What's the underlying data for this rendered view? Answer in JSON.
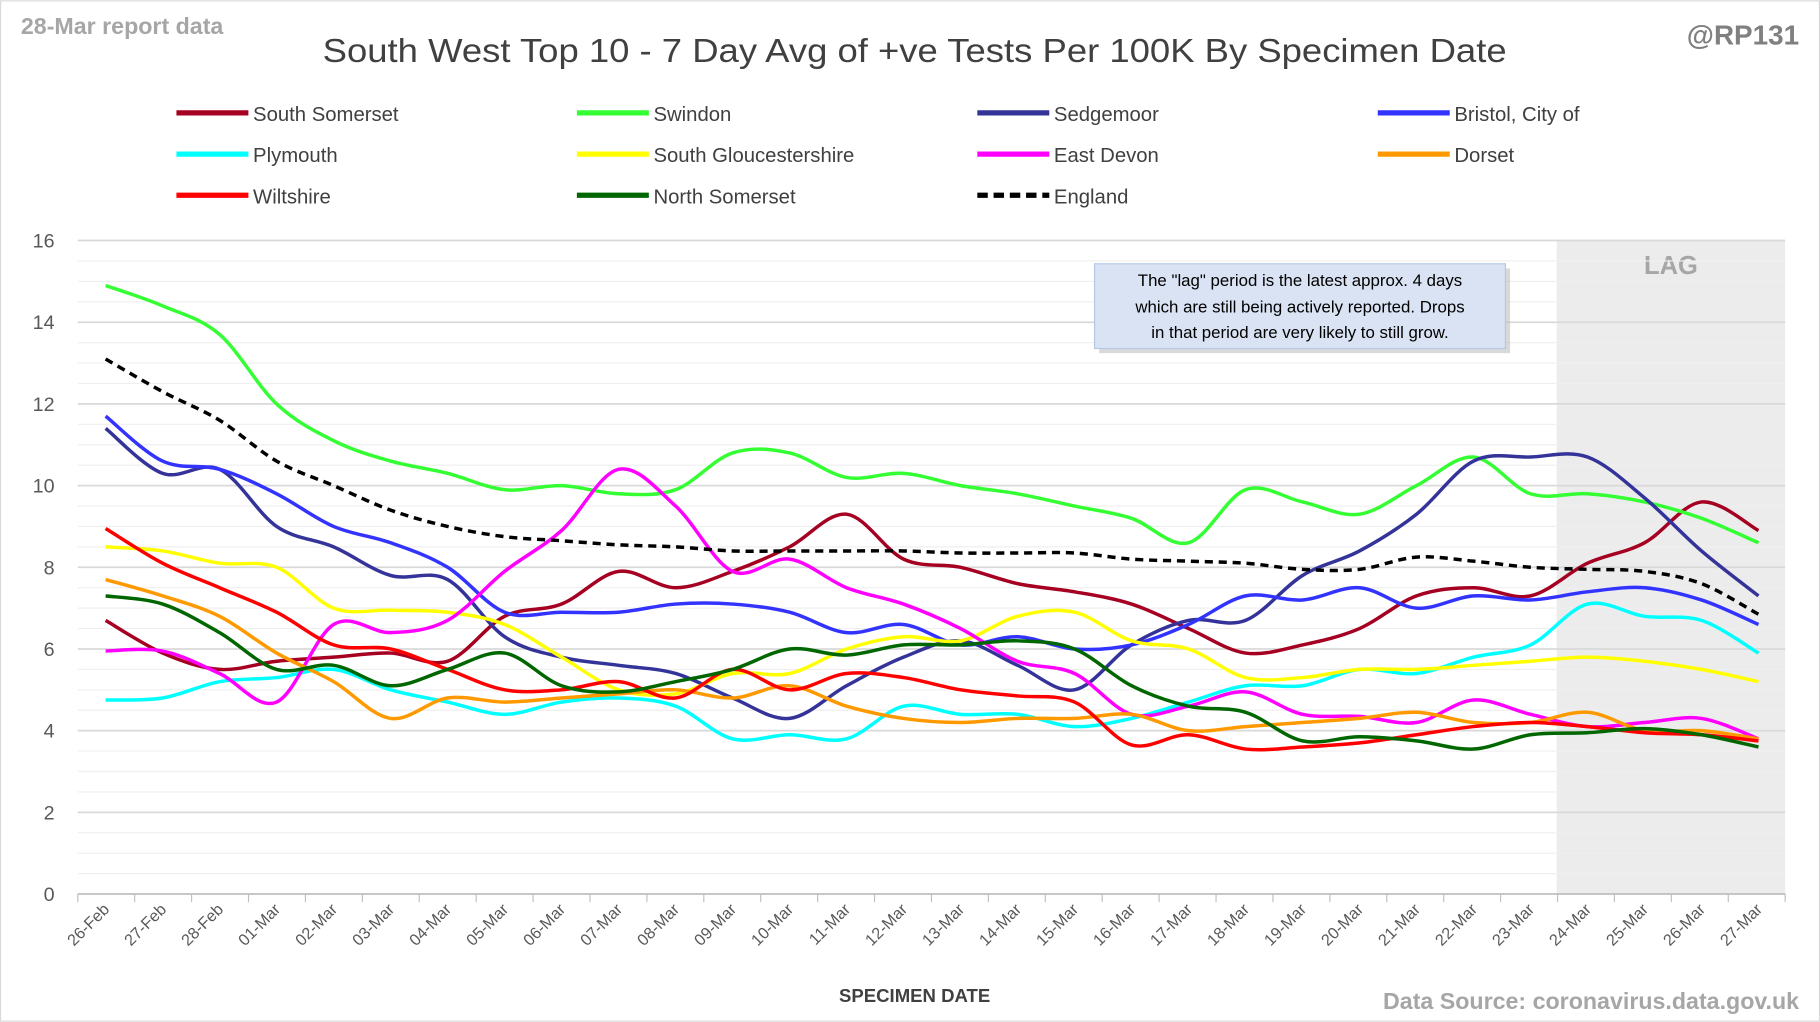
{
  "chart_data": {
    "type": "line",
    "title": "South West Top 10 - 7 Day Avg of +ve Tests Per 100K By Specimen Date",
    "report_label": "28-Mar report data",
    "handle": "@RP131",
    "source": "Data Source: coronavirus.data.gov.uk",
    "xlabel": "SPECIMEN DATE",
    "ylabel": "",
    "ylim": [
      0,
      16
    ],
    "yticks": [
      "0",
      "2",
      "4",
      "6",
      "8",
      "10",
      "12",
      "14",
      "16"
    ],
    "grid": true,
    "legend_placement": "top",
    "lag_label": "LAG",
    "lag_start_index": 25,
    "annotation": [
      "The \"lag\" period is the latest approx. 4 days",
      "which are still being actively reported.  Drops",
      "in that period are very likely to still grow."
    ],
    "categories": [
      "26-Feb",
      "27-Feb",
      "28-Feb",
      "01-Mar",
      "02-Mar",
      "03-Mar",
      "04-Mar",
      "05-Mar",
      "06-Mar",
      "07-Mar",
      "08-Mar",
      "09-Mar",
      "10-Mar",
      "11-Mar",
      "12-Mar",
      "13-Mar",
      "14-Mar",
      "15-Mar",
      "16-Mar",
      "17-Mar",
      "18-Mar",
      "19-Mar",
      "20-Mar",
      "21-Mar",
      "22-Mar",
      "23-Mar",
      "24-Mar",
      "25-Mar",
      "26-Mar",
      "27-Mar"
    ],
    "series": [
      {
        "name": "South Somerset",
        "color": "#a50021",
        "dashed": false,
        "values": [
          6.7,
          5.9,
          5.5,
          5.7,
          5.8,
          5.9,
          5.7,
          6.8,
          7.1,
          7.9,
          7.5,
          7.9,
          8.5,
          9.3,
          8.2,
          8.0,
          7.6,
          7.4,
          7.1,
          6.5,
          5.9,
          6.1,
          6.5,
          7.3,
          7.5,
          7.3,
          8.1,
          8.6,
          9.6,
          8.9
        ]
      },
      {
        "name": "Swindon",
        "color": "#33ff33",
        "dashed": false,
        "values": [
          14.9,
          14.4,
          13.7,
          12.0,
          11.1,
          10.6,
          10.3,
          9.9,
          10.0,
          9.8,
          9.9,
          10.8,
          10.8,
          10.2,
          10.3,
          10.0,
          9.8,
          9.5,
          9.2,
          8.6,
          9.9,
          9.6,
          9.3,
          10.0,
          10.7,
          9.8,
          9.8,
          9.6,
          9.2,
          8.6
        ]
      },
      {
        "name": "Sedgemoor",
        "color": "#333399",
        "dashed": false,
        "values": [
          11.4,
          10.3,
          10.4,
          9.0,
          8.5,
          7.8,
          7.7,
          6.3,
          5.8,
          5.6,
          5.4,
          4.8,
          4.3,
          5.1,
          5.8,
          6.2,
          5.6,
          5.0,
          6.1,
          6.7,
          6.7,
          7.8,
          8.4,
          9.3,
          10.6,
          10.7,
          10.7,
          9.7,
          8.4,
          7.3
        ]
      },
      {
        "name": "Bristol, City of",
        "color": "#3333ff",
        "dashed": false,
        "values": [
          11.7,
          10.6,
          10.4,
          9.8,
          9.0,
          8.6,
          8.0,
          6.9,
          6.9,
          6.9,
          7.1,
          7.1,
          6.9,
          6.4,
          6.6,
          6.1,
          6.3,
          6.0,
          6.1,
          6.6,
          7.3,
          7.2,
          7.5,
          7.0,
          7.3,
          7.2,
          7.4,
          7.5,
          7.2,
          6.6
        ]
      },
      {
        "name": "Plymouth",
        "color": "#00ffff",
        "dashed": false,
        "values": [
          4.75,
          4.8,
          5.2,
          5.3,
          5.5,
          5.0,
          4.7,
          4.4,
          4.7,
          4.8,
          4.6,
          3.8,
          3.9,
          3.8,
          4.6,
          4.4,
          4.4,
          4.1,
          4.3,
          4.7,
          5.1,
          5.1,
          5.5,
          5.4,
          5.8,
          6.1,
          7.1,
          6.8,
          6.7,
          5.9
        ]
      },
      {
        "name": "South Gloucestershire",
        "color": "#ffff00",
        "dashed": false,
        "values": [
          8.5,
          8.4,
          8.1,
          8.0,
          7.0,
          6.95,
          6.9,
          6.6,
          5.8,
          5.0,
          4.9,
          5.4,
          5.4,
          6.0,
          6.3,
          6.2,
          6.8,
          6.9,
          6.2,
          6.0,
          5.3,
          5.3,
          5.5,
          5.5,
          5.6,
          5.7,
          5.8,
          5.7,
          5.5,
          5.2
        ]
      },
      {
        "name": "East Devon",
        "color": "#ff00ff",
        "dashed": false,
        "values": [
          5.95,
          5.95,
          5.4,
          4.7,
          6.6,
          6.4,
          6.7,
          7.9,
          8.9,
          10.4,
          9.5,
          7.9,
          8.2,
          7.5,
          7.1,
          6.5,
          5.7,
          5.4,
          4.4,
          4.6,
          4.95,
          4.4,
          4.35,
          4.2,
          4.75,
          4.4,
          4.1,
          4.2,
          4.3,
          3.8
        ]
      },
      {
        "name": "Dorset",
        "color": "#ff9900",
        "dashed": false,
        "values": [
          7.7,
          7.3,
          6.8,
          5.9,
          5.2,
          4.3,
          4.8,
          4.7,
          4.8,
          4.9,
          5.0,
          4.8,
          5.1,
          4.6,
          4.3,
          4.2,
          4.3,
          4.3,
          4.4,
          4.0,
          4.1,
          4.2,
          4.3,
          4.45,
          4.2,
          4.2,
          4.45,
          4.0,
          4.0,
          3.8
        ]
      },
      {
        "name": "Wiltshire",
        "color": "#ff0000",
        "dashed": false,
        "values": [
          8.95,
          8.1,
          7.5,
          6.9,
          6.1,
          6.0,
          5.5,
          5.0,
          5.0,
          5.2,
          4.8,
          5.5,
          5.0,
          5.4,
          5.3,
          5.0,
          4.85,
          4.7,
          3.65,
          3.9,
          3.55,
          3.6,
          3.7,
          3.9,
          4.1,
          4.2,
          4.1,
          3.95,
          3.9,
          3.75
        ]
      },
      {
        "name": "North Somerset",
        "color": "#006600",
        "dashed": false,
        "values": [
          7.3,
          7.1,
          6.4,
          5.5,
          5.6,
          5.1,
          5.5,
          5.9,
          5.1,
          4.95,
          5.2,
          5.5,
          6.0,
          5.85,
          6.1,
          6.1,
          6.2,
          6.0,
          5.1,
          4.6,
          4.45,
          3.75,
          3.85,
          3.75,
          3.55,
          3.9,
          3.95,
          4.05,
          3.9,
          3.6
        ]
      },
      {
        "name": "England",
        "color": "#000000",
        "dashed": true,
        "values": [
          13.1,
          12.3,
          11.6,
          10.6,
          10.0,
          9.4,
          9.0,
          8.75,
          8.65,
          8.55,
          8.5,
          8.4,
          8.4,
          8.4,
          8.4,
          8.35,
          8.35,
          8.35,
          8.2,
          8.15,
          8.1,
          7.95,
          7.95,
          8.25,
          8.15,
          8.0,
          7.95,
          7.9,
          7.6,
          6.85
        ]
      }
    ]
  }
}
